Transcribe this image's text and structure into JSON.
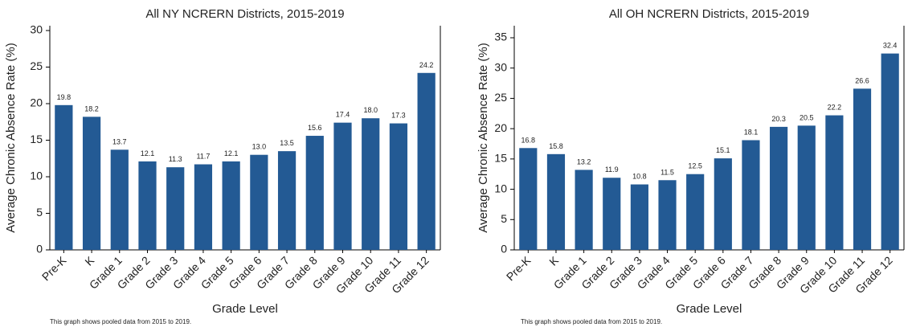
{
  "chart_data": [
    {
      "type": "bar",
      "title": "All NY NCRERN Districts, 2015-2019",
      "x_label": "Grade Level",
      "y_label": "Average Chronic Absence Rate (%)",
      "note": "This graph shows pooled data from 2015 to 2019.",
      "categories": [
        "Pre-K",
        "K",
        "Grade 1",
        "Grade 2",
        "Grade 3",
        "Grade 4",
        "Grade 5",
        "Grade 6",
        "Grade 7",
        "Grade 8",
        "Grade 9",
        "Grade 10",
        "Grade 11",
        "Grade 12"
      ],
      "values": [
        19.8,
        18.2,
        13.7,
        12.1,
        11.3,
        11.7,
        12.1,
        13.0,
        13.5,
        15.6,
        17.4,
        18.0,
        17.3,
        24.2
      ],
      "value_labels": [
        "19.8",
        "18.2",
        "13.7",
        "12.1",
        "11.3",
        "11.7",
        "12.1",
        "13.0",
        "13.5",
        "15.6",
        "17.4",
        "18.0",
        "17.3",
        "24.2"
      ],
      "color": "#235a94",
      "ylim": [
        0,
        30
      ],
      "yticks": [
        0,
        5,
        10,
        15,
        20,
        25,
        30
      ],
      "grid": false
    },
    {
      "type": "bar",
      "title": "All OH NCRERN Districts, 2015-2019",
      "x_label": "Grade Level",
      "y_label": "Average Chronic Absence Rate (%)",
      "note": "This graph shows pooled data from 2015 to 2019.",
      "categories": [
        "Pre-K",
        "K",
        "Grade 1",
        "Grade 2",
        "Grade 3",
        "Grade 4",
        "Grade 5",
        "Grade 6",
        "Grade 7",
        "Grade 8",
        "Grade 9",
        "Grade 10",
        "Grade 11",
        "Grade 12"
      ],
      "values": [
        16.8,
        15.8,
        13.2,
        11.9,
        10.8,
        11.5,
        12.5,
        15.1,
        18.1,
        20.3,
        20.5,
        22.2,
        26.6,
        32.4
      ],
      "color": "#235a94",
      "ylim": [
        0,
        35
      ],
      "yticks": [
        0,
        5,
        10,
        15,
        20,
        25,
        30,
        35
      ],
      "grid": false
    }
  ]
}
